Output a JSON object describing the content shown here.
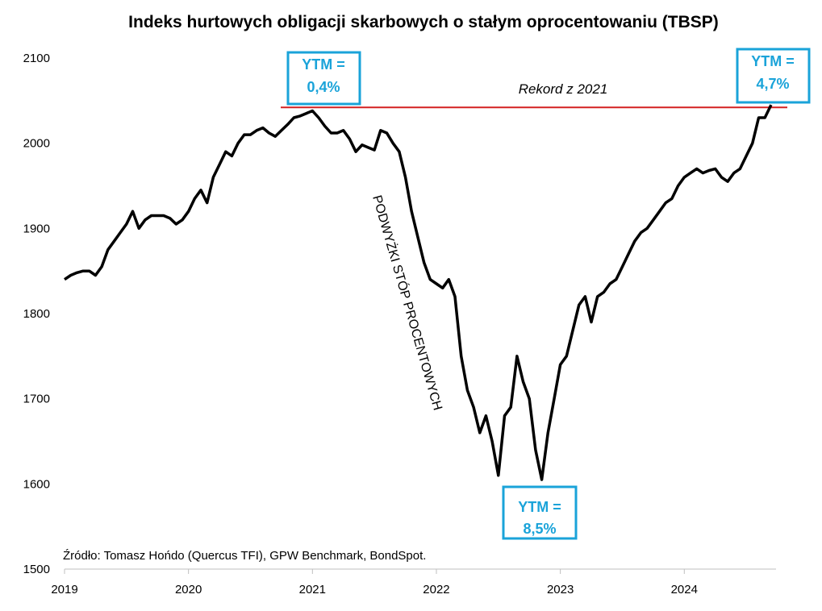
{
  "chart_data": {
    "type": "line",
    "title": "Indeks hurtowych obligacji skarbowych o stałym oprocentowaniu (TBSP)",
    "source": "Źródło: Tomasz Hońdo (Quercus TFI), GPW Benchmark, BondSpot.",
    "xlim": [
      2019,
      2024.74
    ],
    "xticks": [
      2019,
      2020,
      2021,
      2022,
      2023,
      2024
    ],
    "ylim": [
      1500,
      2100
    ],
    "yticks": [
      1500,
      1600,
      1700,
      1800,
      1900,
      2000,
      2100
    ],
    "reference_line": {
      "value": 2042,
      "label": "Rekord z 2021",
      "color": "#d42020"
    },
    "annotations": [
      {
        "line1": "YTM =",
        "line2": "0,4%"
      },
      {
        "line1": "YTM =",
        "line2": "8,5%"
      },
      {
        "line1": "YTM =",
        "line2": "4,7%"
      },
      {
        "text": "PODWYŻKI STÓP PROCENTOWYCH"
      }
    ],
    "x": [
      2019.0,
      2019.05,
      2019.1,
      2019.15,
      2019.2,
      2019.25,
      2019.3,
      2019.35,
      2019.4,
      2019.45,
      2019.5,
      2019.55,
      2019.6,
      2019.65,
      2019.7,
      2019.75,
      2019.8,
      2019.85,
      2019.9,
      2019.95,
      2020.0,
      2020.05,
      2020.1,
      2020.15,
      2020.2,
      2020.25,
      2020.3,
      2020.35,
      2020.4,
      2020.45,
      2020.5,
      2020.55,
      2020.6,
      2020.65,
      2020.7,
      2020.75,
      2020.8,
      2020.85,
      2020.9,
      2020.95,
      2021.0,
      2021.05,
      2021.1,
      2021.15,
      2021.2,
      2021.25,
      2021.3,
      2021.35,
      2021.4,
      2021.45,
      2021.5,
      2021.55,
      2021.6,
      2021.65,
      2021.7,
      2021.75,
      2021.8,
      2021.85,
      2021.9,
      2021.95,
      2022.0,
      2022.05,
      2022.1,
      2022.15,
      2022.2,
      2022.25,
      2022.3,
      2022.35,
      2022.4,
      2022.45,
      2022.5,
      2022.55,
      2022.6,
      2022.65,
      2022.7,
      2022.75,
      2022.8,
      2022.85,
      2022.9,
      2022.95,
      2023.0,
      2023.05,
      2023.1,
      2023.15,
      2023.2,
      2023.25,
      2023.3,
      2023.35,
      2023.4,
      2023.45,
      2023.5,
      2023.55,
      2023.6,
      2023.65,
      2023.7,
      2023.75,
      2023.8,
      2023.85,
      2023.9,
      2023.95,
      2024.0,
      2024.05,
      2024.1,
      2024.15,
      2024.2,
      2024.25,
      2024.3,
      2024.35,
      2024.4,
      2024.45,
      2024.5,
      2024.55,
      2024.6,
      2024.65,
      2024.7
    ],
    "series": [
      {
        "color": "#000000",
        "values": [
          1840,
          1845,
          1848,
          1850,
          1850,
          1845,
          1855,
          1875,
          1885,
          1895,
          1905,
          1920,
          1900,
          1910,
          1915,
          1915,
          1915,
          1912,
          1905,
          1910,
          1920,
          1935,
          1945,
          1930,
          1960,
          1975,
          1990,
          1985,
          2000,
          2010,
          2010,
          2015,
          2018,
          2012,
          2008,
          2015,
          2022,
          2030,
          2032,
          2035,
          2038,
          2030,
          2020,
          2012,
          2012,
          2015,
          2005,
          1990,
          1998,
          1995,
          1992,
          2015,
          2012,
          2000,
          1990,
          1960,
          1920,
          1890,
          1860,
          1840,
          1835,
          1830,
          1840,
          1820,
          1750,
          1710,
          1690,
          1660,
          1680,
          1650,
          1610,
          1680,
          1690,
          1750,
          1720,
          1700,
          1640,
          1605,
          1660,
          1700,
          1740,
          1750,
          1780,
          1810,
          1820,
          1790,
          1820,
          1825,
          1835,
          1840,
          1855,
          1870,
          1885,
          1895,
          1900,
          1910,
          1920,
          1930,
          1935,
          1950,
          1960,
          1965,
          1970,
          1965,
          1968,
          1970,
          1960,
          1955,
          1965,
          1970,
          1985,
          2000,
          2030,
          2030,
          2045
        ]
      }
    ]
  }
}
